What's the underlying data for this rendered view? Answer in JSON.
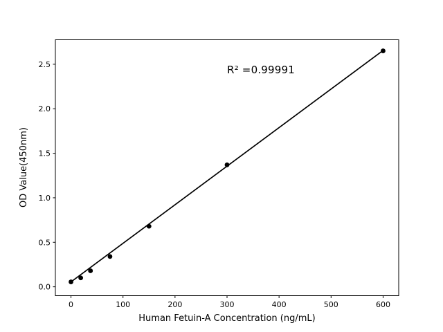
{
  "figure": {
    "background": "#ffffff"
  },
  "chart_data": {
    "type": "scatter",
    "title": "",
    "xlabel": "Human Fetuin-A Concentration (ng/mL)",
    "ylabel": "OD Value(450nm)",
    "annotation": "R² =0.99991",
    "series": [
      {
        "name": "standard-points",
        "x": [
          0,
          18.75,
          37.5,
          75,
          150,
          300,
          600
        ],
        "y": [
          0.055,
          0.1,
          0.18,
          0.34,
          0.68,
          1.37,
          2.65
        ],
        "marker": "circle",
        "marker_size": 3.4,
        "color": "#000000"
      }
    ],
    "fit_line": {
      "x": [
        0,
        600
      ],
      "y": [
        0.055,
        2.655
      ],
      "color": "#000000",
      "width": 1.7
    },
    "xlim": [
      -30,
      630
    ],
    "ylim": [
      -0.1,
      2.775
    ],
    "xticks": [
      0,
      100,
      200,
      300,
      400,
      500,
      600
    ],
    "xtick_labels": [
      "0",
      "100",
      "200",
      "300",
      "400",
      "500",
      "600"
    ],
    "yticks": [
      0.0,
      0.5,
      1.0,
      1.5,
      2.0,
      2.5
    ],
    "ytick_labels": [
      "0.0",
      "0.5",
      "1.0",
      "1.5",
      "2.0",
      "2.5"
    ],
    "grid": false,
    "legend": null,
    "colors": {
      "spine": "#000000",
      "tick": "#000000",
      "text": "#000000",
      "background": "#ffffff"
    }
  }
}
